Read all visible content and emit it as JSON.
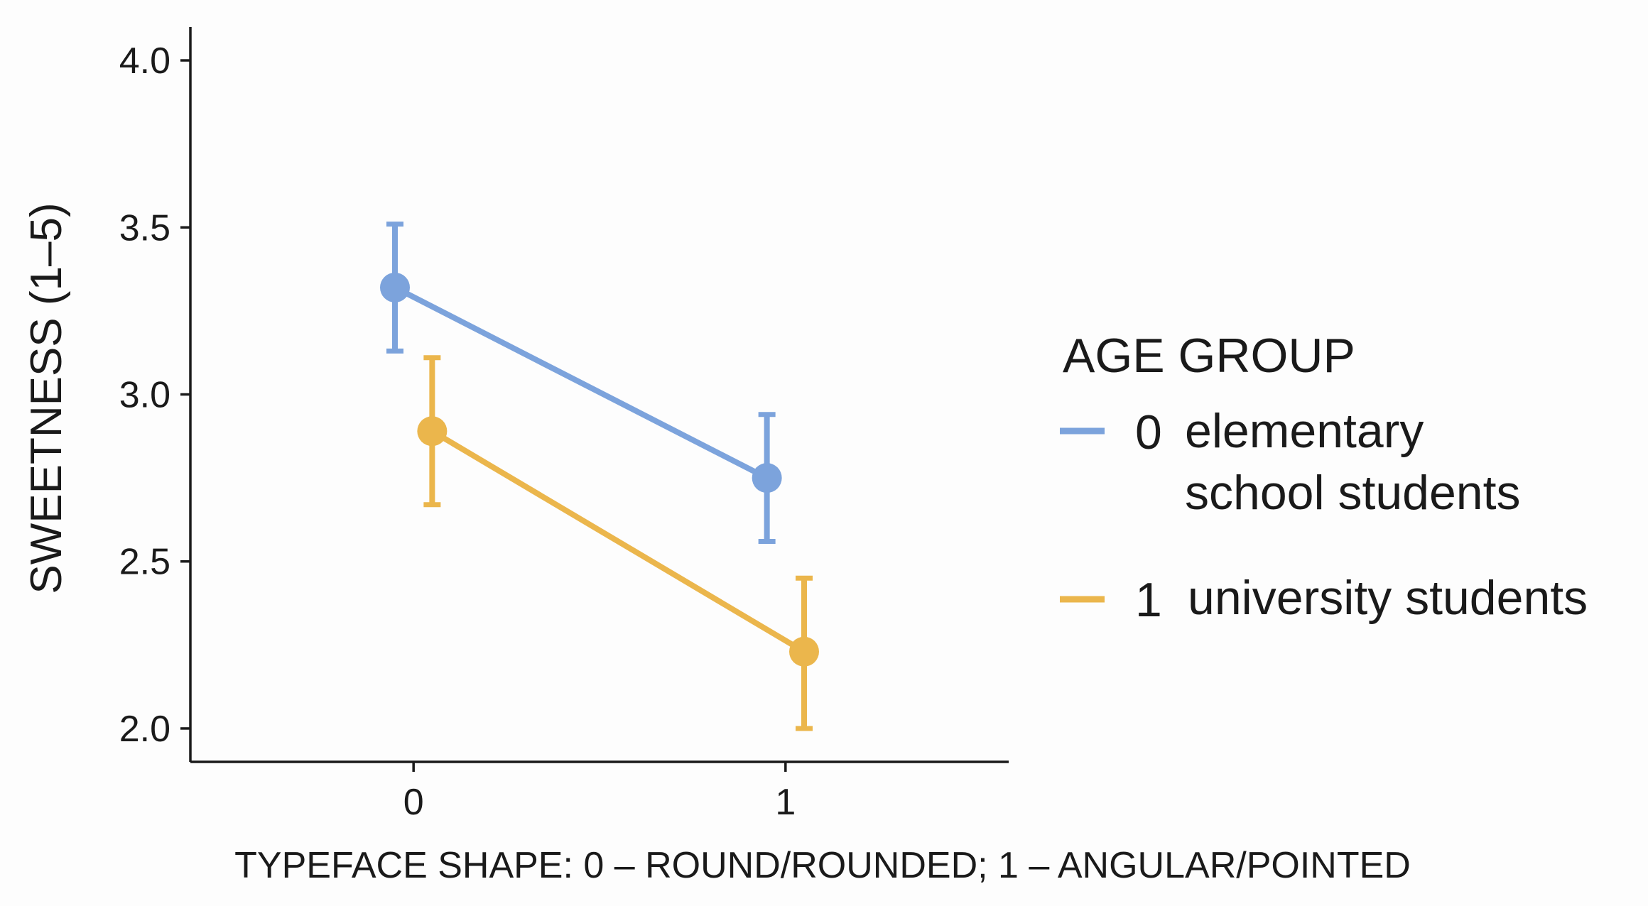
{
  "chart_data": {
    "type": "line",
    "title": "",
    "xlabel": "TYPEFACE SHAPE: 0 – ROUND/ROUNDED; 1 – ANGULAR/POINTED",
    "ylabel": "SWEETNESS (1–5)",
    "categories": [
      "0",
      "1"
    ],
    "xlim": [
      -0.6,
      1.6
    ],
    "ylim": [
      1.9,
      4.1
    ],
    "yticks": [
      2.0,
      2.5,
      3.0,
      3.5,
      4.0
    ],
    "ytick_labels": [
      "2.0",
      "2.5",
      "3.0",
      "3.5",
      "4.0"
    ],
    "xtick_labels": [
      "0",
      "1"
    ],
    "legend": {
      "title": "AGE GROUP",
      "position": "right"
    },
    "series": [
      {
        "name": "0 elementary school students",
        "code": "0",
        "label_lines": [
          "elementary",
          "school students"
        ],
        "color": "#7ca3dc",
        "dodge": -0.05,
        "values": [
          3.32,
          2.75
        ],
        "ci_low": [
          3.13,
          2.56
        ],
        "ci_high": [
          3.51,
          2.94
        ]
      },
      {
        "name": "1 university students",
        "code": "1",
        "label_lines": [
          "university students"
        ],
        "color": "#ebb64c",
        "dodge": 0.05,
        "values": [
          2.89,
          2.23
        ],
        "ci_low": [
          2.67,
          2.0
        ],
        "ci_high": [
          3.11,
          2.45
        ]
      }
    ]
  }
}
